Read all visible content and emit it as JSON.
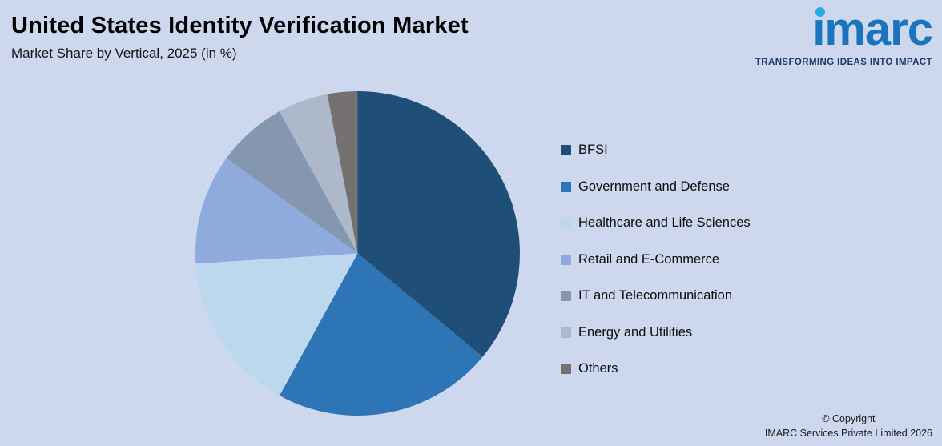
{
  "header": {
    "title": "United States Identity Verification Market",
    "subtitle": "Market Share by Vertical, 2025 (in %)"
  },
  "logo": {
    "brand": "imarc",
    "tagline": "TRANSFORMING IDEAS INTO IMPACT",
    "brand_color": "#1B75BC",
    "dot_color": "#29ABE2",
    "tagline_color": "#1F3864"
  },
  "footer": {
    "copyright_line1": "© Copyright",
    "copyright_line2": "IMARC Services Private Limited 2026"
  },
  "chart_data": {
    "type": "pie",
    "title": "United States Identity Verification Market",
    "subtitle": "Market Share by Vertical, 2025 (in %)",
    "unit": "%",
    "legend_position": "right",
    "start_angle_deg": 0,
    "direction": "clockwise",
    "background_color": "#CDD8EE",
    "series": [
      {
        "label": "BFSI",
        "value": 36,
        "color": "#1F4E79"
      },
      {
        "label": "Government and Defense",
        "value": 22,
        "color": "#2E75B6"
      },
      {
        "label": "Healthcare and Life Sciences",
        "value": 16,
        "color": "#BDD7EE"
      },
      {
        "label": "Retail and E-Commerce",
        "value": 11,
        "color": "#8FAADC"
      },
      {
        "label": "IT and Telecommunication",
        "value": 7,
        "color": "#8496B0"
      },
      {
        "label": "Energy and Utilities",
        "value": 5,
        "color": "#ADB9CA"
      },
      {
        "label": "Others",
        "value": 3,
        "color": "#767171"
      }
    ]
  }
}
